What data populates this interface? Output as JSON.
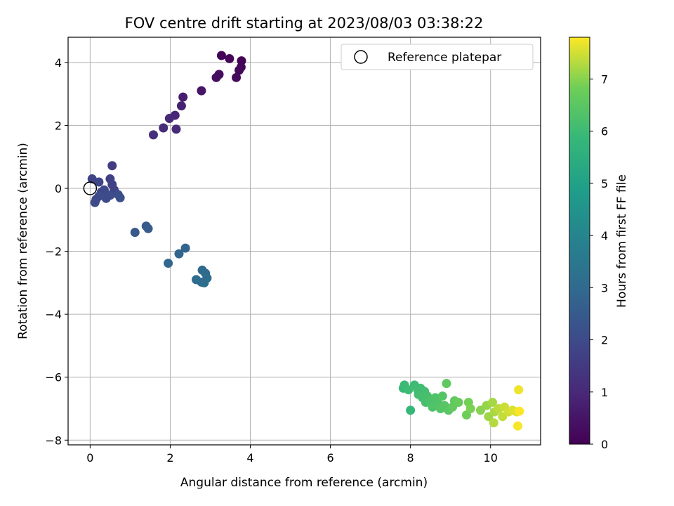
{
  "chart_data": {
    "type": "scatter",
    "title": "FOV centre drift starting at 2023/08/03 03:38:22",
    "xlabel": "Angular distance from reference (arcmin)",
    "ylabel": "Rotation from reference (arcmin)",
    "xlim": [
      -0.55,
      11.25
    ],
    "ylim": [
      -8.15,
      4.8
    ],
    "xticks": [
      0,
      2,
      4,
      6,
      8,
      10
    ],
    "yticks": [
      -8,
      -6,
      -4,
      -2,
      0,
      2,
      4
    ],
    "grid": true,
    "legend": {
      "position": "top-right",
      "entries": [
        "Reference platepar"
      ]
    },
    "reference_point": {
      "x": 0,
      "y": 0
    },
    "colorbar": {
      "label": "Hours from first FF file",
      "range": [
        0,
        7.8
      ],
      "ticks": [
        0,
        1,
        2,
        3,
        4,
        5,
        6,
        7
      ],
      "colormap": "viridis"
    },
    "points": [
      {
        "x": 3.28,
        "y": 4.22,
        "t": 0.1
      },
      {
        "x": 3.48,
        "y": 4.12,
        "t": 0.15
      },
      {
        "x": 3.78,
        "y": 4.05,
        "t": 0.05
      },
      {
        "x": 3.77,
        "y": 3.85,
        "t": 0.12
      },
      {
        "x": 3.72,
        "y": 3.75,
        "t": 0.18
      },
      {
        "x": 3.65,
        "y": 3.52,
        "t": 0.22
      },
      {
        "x": 3.22,
        "y": 3.62,
        "t": 0.3
      },
      {
        "x": 3.15,
        "y": 3.52,
        "t": 0.35
      },
      {
        "x": 2.78,
        "y": 3.1,
        "t": 0.5
      },
      {
        "x": 2.32,
        "y": 2.9,
        "t": 0.7
      },
      {
        "x": 2.28,
        "y": 2.62,
        "t": 0.8
      },
      {
        "x": 2.12,
        "y": 2.32,
        "t": 0.9
      },
      {
        "x": 1.98,
        "y": 2.22,
        "t": 1.0
      },
      {
        "x": 2.15,
        "y": 1.88,
        "t": 1.05
      },
      {
        "x": 1.83,
        "y": 1.92,
        "t": 1.1
      },
      {
        "x": 1.58,
        "y": 1.7,
        "t": 1.2
      },
      {
        "x": 0.55,
        "y": 0.72,
        "t": 1.6
      },
      {
        "x": 0.05,
        "y": 0.3,
        "t": 1.8
      },
      {
        "x": 0.22,
        "y": 0.2,
        "t": 1.85
      },
      {
        "x": 0.5,
        "y": 0.3,
        "t": 1.7
      },
      {
        "x": 0.55,
        "y": 0.12,
        "t": 1.75
      },
      {
        "x": 0.6,
        "y": -0.05,
        "t": 1.8
      },
      {
        "x": 0.35,
        "y": -0.05,
        "t": 1.9
      },
      {
        "x": 0.28,
        "y": -0.12,
        "t": 1.95
      },
      {
        "x": 0.42,
        "y": -0.2,
        "t": 2.0
      },
      {
        "x": 0.5,
        "y": -0.22,
        "t": 2.05
      },
      {
        "x": 0.7,
        "y": -0.2,
        "t": 2.1
      },
      {
        "x": 0.75,
        "y": -0.3,
        "t": 2.15
      },
      {
        "x": 0.4,
        "y": -0.32,
        "t": 2.0
      },
      {
        "x": 0.22,
        "y": -0.25,
        "t": 2.05
      },
      {
        "x": 0.15,
        "y": -0.35,
        "t": 1.95
      },
      {
        "x": 0.12,
        "y": -0.45,
        "t": 2.0
      },
      {
        "x": 1.12,
        "y": -1.4,
        "t": 2.4
      },
      {
        "x": 1.4,
        "y": -1.2,
        "t": 2.5
      },
      {
        "x": 1.45,
        "y": -1.28,
        "t": 2.55
      },
      {
        "x": 2.38,
        "y": -1.9,
        "t": 2.8
      },
      {
        "x": 2.22,
        "y": -2.08,
        "t": 2.85
      },
      {
        "x": 1.95,
        "y": -2.38,
        "t": 2.9
      },
      {
        "x": 2.8,
        "y": -2.6,
        "t": 3.0
      },
      {
        "x": 2.88,
        "y": -2.7,
        "t": 3.05
      },
      {
        "x": 2.65,
        "y": -2.9,
        "t": 3.1
      },
      {
        "x": 2.78,
        "y": -2.98,
        "t": 3.12
      },
      {
        "x": 2.85,
        "y": -3.0,
        "t": 3.15
      },
      {
        "x": 2.92,
        "y": -2.85,
        "t": 3.08
      },
      {
        "x": 7.82,
        "y": -6.35,
        "t": 5.9
      },
      {
        "x": 7.85,
        "y": -6.25,
        "t": 5.95
      },
      {
        "x": 7.95,
        "y": -6.4,
        "t": 6.0
      },
      {
        "x": 8.1,
        "y": -6.25,
        "t": 6.0
      },
      {
        "x": 8.18,
        "y": -6.4,
        "t": 6.05
      },
      {
        "x": 8.25,
        "y": -6.35,
        "t": 6.05
      },
      {
        "x": 8.2,
        "y": -6.55,
        "t": 6.1
      },
      {
        "x": 8.35,
        "y": -6.45,
        "t": 6.1
      },
      {
        "x": 8.3,
        "y": -6.65,
        "t": 6.15
      },
      {
        "x": 8.42,
        "y": -6.6,
        "t": 6.2
      },
      {
        "x": 8.38,
        "y": -6.8,
        "t": 6.2
      },
      {
        "x": 8.5,
        "y": -6.75,
        "t": 6.25
      },
      {
        "x": 8.55,
        "y": -6.95,
        "t": 6.3
      },
      {
        "x": 8.62,
        "y": -6.65,
        "t": 6.3
      },
      {
        "x": 8.7,
        "y": -6.85,
        "t": 6.35
      },
      {
        "x": 8.75,
        "y": -7.0,
        "t": 6.4
      },
      {
        "x": 8.8,
        "y": -6.6,
        "t": 6.4
      },
      {
        "x": 8.85,
        "y": -6.9,
        "t": 6.45
      },
      {
        "x": 8.95,
        "y": -7.05,
        "t": 6.5
      },
      {
        "x": 8.9,
        "y": -6.2,
        "t": 6.55
      },
      {
        "x": 9.05,
        "y": -6.95,
        "t": 6.6
      },
      {
        "x": 9.1,
        "y": -6.75,
        "t": 6.6
      },
      {
        "x": 9.2,
        "y": -6.8,
        "t": 6.7
      },
      {
        "x": 8.0,
        "y": -7.05,
        "t": 5.85
      },
      {
        "x": 9.4,
        "y": -7.2,
        "t": 6.8
      },
      {
        "x": 9.45,
        "y": -6.8,
        "t": 6.85
      },
      {
        "x": 9.5,
        "y": -7.0,
        "t": 6.9
      },
      {
        "x": 9.75,
        "y": -7.05,
        "t": 7.0
      },
      {
        "x": 9.9,
        "y": -6.9,
        "t": 7.1
      },
      {
        "x": 9.95,
        "y": -7.25,
        "t": 7.15
      },
      {
        "x": 10.05,
        "y": -6.8,
        "t": 7.2
      },
      {
        "x": 10.1,
        "y": -7.1,
        "t": 7.25
      },
      {
        "x": 10.08,
        "y": -7.45,
        "t": 7.3
      },
      {
        "x": 10.2,
        "y": -7.0,
        "t": 7.35
      },
      {
        "x": 10.3,
        "y": -7.25,
        "t": 7.4
      },
      {
        "x": 10.35,
        "y": -6.95,
        "t": 7.45
      },
      {
        "x": 10.45,
        "y": -7.1,
        "t": 7.5
      },
      {
        "x": 10.55,
        "y": -7.05,
        "t": 7.55
      },
      {
        "x": 10.65,
        "y": -7.1,
        "t": 7.6
      },
      {
        "x": 10.7,
        "y": -6.4,
        "t": 7.7
      },
      {
        "x": 10.68,
        "y": -7.55,
        "t": 7.75
      },
      {
        "x": 10.72,
        "y": -7.08,
        "t": 7.78
      }
    ]
  }
}
